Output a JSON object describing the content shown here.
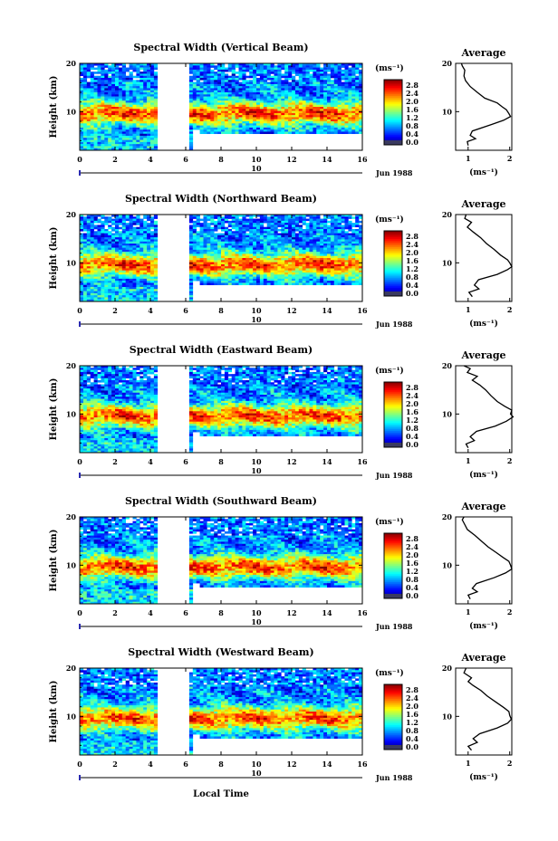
{
  "figure": {
    "xlabel": "Local Time",
    "date_label": "Jun 1988",
    "day_label": "10",
    "ylabel": "Height (km)",
    "colorbar_unit": "(ms⁻¹)",
    "average_title": "Average",
    "average_xlabel": "(ms⁻¹)"
  },
  "chart_data": [
    {
      "type": "heatmap",
      "title": "Spectral Width (Vertical Beam)",
      "x_ticks": [
        "0",
        "2",
        "4",
        "6",
        "8",
        "10",
        "12",
        "14",
        "16"
      ],
      "y_ticks": [
        "20",
        "10"
      ],
      "xlim": [
        0,
        16
      ],
      "ylim": [
        2,
        20
      ],
      "colorbar_ticks": [
        "2.8",
        "2.4",
        "2.0",
        "1.6",
        "1.2",
        "0.8",
        "0.4",
        "0.0"
      ],
      "avg_x_ticks": [
        "1",
        "2"
      ],
      "avg_y_ticks": [
        "20",
        "10"
      ],
      "avg_profile": [
        [
          1.0,
          3.0
        ],
        [
          0.98,
          3.8
        ],
        [
          1.18,
          4.4
        ],
        [
          1.05,
          5.1
        ],
        [
          1.1,
          6.0
        ],
        [
          1.55,
          7.3
        ],
        [
          1.85,
          8.2
        ],
        [
          2.02,
          9.0
        ],
        [
          1.98,
          9.6
        ],
        [
          1.92,
          10.4
        ],
        [
          1.82,
          11.0
        ],
        [
          1.7,
          11.8
        ],
        [
          1.4,
          12.8
        ],
        [
          1.22,
          14.0
        ],
        [
          1.05,
          15.2
        ],
        [
          0.94,
          16.4
        ],
        [
          0.9,
          17.4
        ],
        [
          0.92,
          18.6
        ],
        [
          0.86,
          19.5
        ],
        [
          0.84,
          20.0
        ]
      ]
    },
    {
      "type": "heatmap",
      "title": "Spectral Width (Northward Beam)",
      "x_ticks": [
        "0",
        "2",
        "4",
        "6",
        "8",
        "10",
        "12",
        "14",
        "16"
      ],
      "y_ticks": [
        "20",
        "10"
      ],
      "xlim": [
        0,
        16
      ],
      "ylim": [
        2,
        20
      ],
      "colorbar_ticks": [
        "2.8",
        "2.4",
        "2.0",
        "1.6",
        "1.2",
        "0.8",
        "0.4",
        "0.0"
      ],
      "avg_x_ticks": [
        "1",
        "2"
      ],
      "avg_y_ticks": [
        "20",
        "10"
      ],
      "avg_profile": [
        [
          1.1,
          3.0
        ],
        [
          1.02,
          3.9
        ],
        [
          1.26,
          4.6
        ],
        [
          1.15,
          5.4
        ],
        [
          1.25,
          6.5
        ],
        [
          1.7,
          7.6
        ],
        [
          1.95,
          8.6
        ],
        [
          2.05,
          9.2
        ],
        [
          2.0,
          10.0
        ],
        [
          1.95,
          10.6
        ],
        [
          1.78,
          11.6
        ],
        [
          1.62,
          12.8
        ],
        [
          1.44,
          14.0
        ],
        [
          1.3,
          15.2
        ],
        [
          1.12,
          16.4
        ],
        [
          0.98,
          17.4
        ],
        [
          1.08,
          18.4
        ],
        [
          0.92,
          19.2
        ],
        [
          0.95,
          20.0
        ]
      ]
    },
    {
      "type": "heatmap",
      "title": "Spectral Width (Eastward Beam)",
      "x_ticks": [
        "0",
        "2",
        "4",
        "6",
        "8",
        "10",
        "12",
        "14",
        "16"
      ],
      "y_ticks": [
        "20",
        "10"
      ],
      "xlim": [
        0,
        16
      ],
      "ylim": [
        2,
        20
      ],
      "colorbar_ticks": [
        "2.8",
        "2.4",
        "2.0",
        "1.6",
        "1.2",
        "0.8",
        "0.4",
        "0.0"
      ],
      "avg_x_ticks": [
        "1",
        "2"
      ],
      "avg_y_ticks": [
        "20",
        "10"
      ],
      "avg_profile": [
        [
          1.0,
          3.0
        ],
        [
          0.95,
          3.8
        ],
        [
          1.15,
          4.5
        ],
        [
          1.05,
          5.3
        ],
        [
          1.2,
          6.4
        ],
        [
          1.65,
          7.5
        ],
        [
          1.92,
          8.5
        ],
        [
          2.08,
          9.4
        ],
        [
          2.02,
          10.0
        ],
        [
          2.05,
          10.8
        ],
        [
          1.88,
          11.6
        ],
        [
          1.7,
          12.6
        ],
        [
          1.55,
          13.8
        ],
        [
          1.42,
          15.0
        ],
        [
          1.28,
          16.0
        ],
        [
          1.1,
          17.0
        ],
        [
          1.22,
          17.8
        ],
        [
          0.98,
          18.6
        ],
        [
          1.05,
          19.4
        ],
        [
          0.9,
          20.0
        ]
      ]
    },
    {
      "type": "heatmap",
      "title": "Spectral Width (Southward Beam)",
      "x_ticks": [
        "0",
        "2",
        "4",
        "6",
        "8",
        "10",
        "12",
        "14",
        "16"
      ],
      "y_ticks": [
        "20",
        "10"
      ],
      "xlim": [
        0,
        16
      ],
      "ylim": [
        2,
        20
      ],
      "colorbar_ticks": [
        "2.8",
        "2.4",
        "2.0",
        "1.6",
        "1.2",
        "0.8",
        "0.4",
        "0.0"
      ],
      "avg_x_ticks": [
        "1",
        "2"
      ],
      "avg_y_ticks": [
        "20",
        "10"
      ],
      "avg_profile": [
        [
          1.05,
          3.0
        ],
        [
          1.0,
          3.8
        ],
        [
          1.22,
          4.5
        ],
        [
          1.1,
          5.2
        ],
        [
          1.2,
          6.2
        ],
        [
          1.62,
          7.4
        ],
        [
          1.9,
          8.4
        ],
        [
          2.05,
          9.2
        ],
        [
          2.02,
          10.0
        ],
        [
          1.98,
          10.8
        ],
        [
          1.84,
          11.6
        ],
        [
          1.68,
          12.6
        ],
        [
          1.48,
          13.8
        ],
        [
          1.32,
          15.0
        ],
        [
          1.16,
          16.2
        ],
        [
          0.98,
          17.4
        ],
        [
          0.92,
          18.4
        ],
        [
          0.86,
          19.4
        ],
        [
          0.9,
          20.0
        ]
      ]
    },
    {
      "type": "heatmap",
      "title": "Spectral Width (Westward Beam)",
      "x_ticks": [
        "0",
        "2",
        "4",
        "6",
        "8",
        "10",
        "12",
        "14",
        "16"
      ],
      "y_ticks": [
        "20",
        "10"
      ],
      "xlim": [
        0,
        16
      ],
      "ylim": [
        2,
        20
      ],
      "colorbar_ticks": [
        "2.8",
        "2.4",
        "2.0",
        "1.6",
        "1.2",
        "0.8",
        "0.4",
        "0.0"
      ],
      "avg_x_ticks": [
        "1",
        "2"
      ],
      "avg_y_ticks": [
        "20",
        "10"
      ],
      "avg_profile": [
        [
          1.08,
          3.0
        ],
        [
          1.0,
          3.8
        ],
        [
          1.22,
          4.6
        ],
        [
          1.12,
          5.4
        ],
        [
          1.28,
          6.4
        ],
        [
          1.7,
          7.6
        ],
        [
          1.95,
          8.6
        ],
        [
          2.04,
          9.4
        ],
        [
          2.0,
          10.2
        ],
        [
          1.98,
          11.0
        ],
        [
          1.86,
          11.8
        ],
        [
          1.66,
          13.0
        ],
        [
          1.46,
          14.2
        ],
        [
          1.3,
          15.4
        ],
        [
          1.12,
          16.4
        ],
        [
          1.0,
          17.2
        ],
        [
          1.08,
          18.0
        ],
        [
          0.9,
          19.0
        ],
        [
          0.95,
          20.0
        ]
      ]
    }
  ]
}
